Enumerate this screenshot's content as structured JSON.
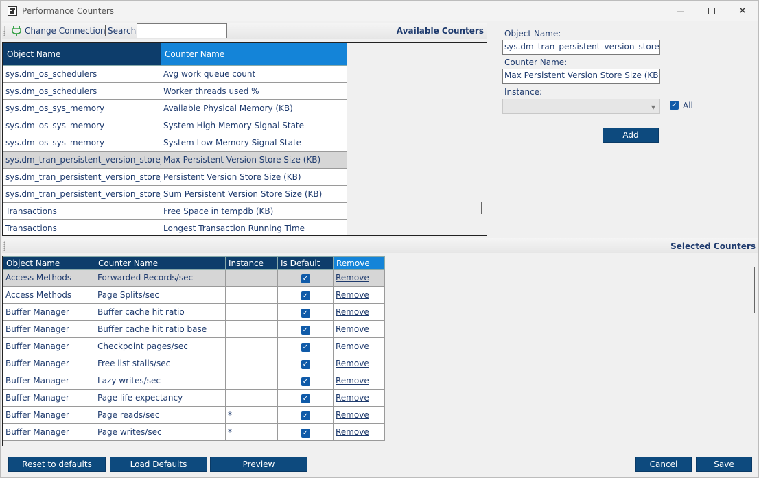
{
  "window": {
    "title": "Performance Counters",
    "controls": {
      "minimize": "—",
      "maximize": "",
      "close": "✕"
    }
  },
  "toolbar": {
    "change_connection": "Change Connection",
    "search_label": "Search",
    "search_value": "",
    "panel_title": "Available Counters"
  },
  "available": {
    "columns": [
      "Object Name",
      "Counter Name"
    ],
    "rows": [
      {
        "object": "sys.dm_os_schedulers",
        "counter": "Avg work queue count"
      },
      {
        "object": "sys.dm_os_schedulers",
        "counter": "Worker threads used %"
      },
      {
        "object": "sys.dm_os_sys_memory",
        "counter": "Available Physical Memory (KB)"
      },
      {
        "object": "sys.dm_os_sys_memory",
        "counter": "System High Memory Signal State"
      },
      {
        "object": "sys.dm_os_sys_memory",
        "counter": "System Low Memory Signal State"
      },
      {
        "object": "sys.dm_tran_persistent_version_store_stats",
        "counter": "Max Persistent Version Store Size (KB)"
      },
      {
        "object": "sys.dm_tran_persistent_version_store_stats",
        "counter": "Persistent Version Store Size (KB)"
      },
      {
        "object": "sys.dm_tran_persistent_version_store_stats",
        "counter": "Sum Persistent Version Store Size (KB)"
      },
      {
        "object": "Transactions",
        "counter": "Free Space in tempdb (KB)"
      },
      {
        "object": "Transactions",
        "counter": "Longest Transaction Running Time"
      }
    ],
    "selected_index": 5
  },
  "details": {
    "object_label": "Object Name:",
    "object_value": "sys.dm_tran_persistent_version_store_stats",
    "counter_label": "Counter Name:",
    "counter_value": "Max Persistent Version Store Size (KB)",
    "instance_label": "Instance:",
    "instance_value": "",
    "all_label": "All",
    "all_checked": true,
    "add_label": "Add"
  },
  "selected": {
    "panel_title": "Selected Counters",
    "columns": [
      "Object Name",
      "Counter Name",
      "Instance",
      "Is Default",
      "Remove"
    ],
    "rows": [
      {
        "object": "Access Methods",
        "counter": "Forwarded Records/sec",
        "instance": "",
        "is_default": true,
        "remove": "Remove"
      },
      {
        "object": "Access Methods",
        "counter": "Page Splits/sec",
        "instance": "",
        "is_default": true,
        "remove": "Remove"
      },
      {
        "object": "Buffer Manager",
        "counter": "Buffer cache hit ratio",
        "instance": "",
        "is_default": true,
        "remove": "Remove"
      },
      {
        "object": "Buffer Manager",
        "counter": "Buffer cache hit ratio base",
        "instance": "",
        "is_default": true,
        "remove": "Remove"
      },
      {
        "object": "Buffer Manager",
        "counter": "Checkpoint pages/sec",
        "instance": "",
        "is_default": true,
        "remove": "Remove"
      },
      {
        "object": "Buffer Manager",
        "counter": "Free list stalls/sec",
        "instance": "",
        "is_default": true,
        "remove": "Remove"
      },
      {
        "object": "Buffer Manager",
        "counter": "Lazy writes/sec",
        "instance": "",
        "is_default": true,
        "remove": "Remove"
      },
      {
        "object": "Buffer Manager",
        "counter": "Page life expectancy",
        "instance": "",
        "is_default": true,
        "remove": "Remove"
      },
      {
        "object": "Buffer Manager",
        "counter": "Page reads/sec",
        "instance": "*",
        "is_default": true,
        "remove": "Remove"
      },
      {
        "object": "Buffer Manager",
        "counter": "Page writes/sec",
        "instance": "*",
        "is_default": true,
        "remove": "Remove"
      }
    ],
    "selected_index": 0
  },
  "buttons": {
    "reset": "Reset to defaults",
    "load_defaults": "Load Defaults",
    "preview": "Preview",
    "cancel": "Cancel",
    "save": "Save"
  },
  "colors": {
    "header_dark": "#0d3d6b",
    "header_accent": "#1484d8",
    "button": "#0d4a7e",
    "checkbox": "#0f5aa8",
    "text": "#1f3b6e"
  },
  "icons": {
    "app": "performance-app-icon",
    "connection": "plug-icon",
    "checkbox": "check-icon"
  }
}
